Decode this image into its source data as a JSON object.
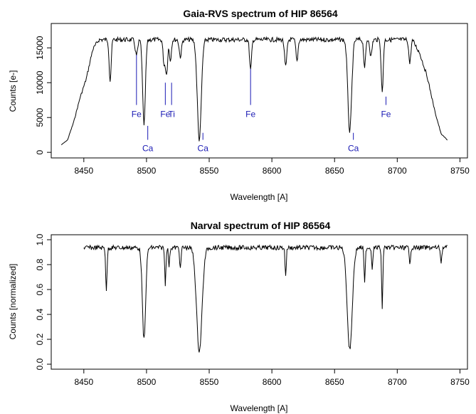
{
  "chart_data": [
    {
      "type": "line",
      "title": "Gaia-RVS spectrum of HIP 86564",
      "xlabel": "Wavelength [A]",
      "ylabel": "Counts [e-]",
      "xlim": [
        8424,
        8756
      ],
      "ylim": [
        -800,
        18500
      ],
      "xticks": [
        8450,
        8500,
        8550,
        8600,
        8650,
        8700,
        8750
      ],
      "yticks": [
        0,
        5000,
        10000,
        15000
      ],
      "grid": false,
      "line_color": "#000000",
      "x_start": 8432,
      "x_end": 8740,
      "base_level": 16900,
      "edges": [
        {
          "x": 8432,
          "y": 1100
        },
        {
          "x": 8437,
          "y": 1800
        },
        {
          "x": 8442,
          "y": 4500
        },
        {
          "x": 8447,
          "y": 8000
        },
        {
          "x": 8452,
          "y": 10800
        },
        {
          "x": 8457,
          "y": 15000
        },
        {
          "x": 8462,
          "y": 16500
        },
        {
          "x": 8712,
          "y": 16500
        },
        {
          "x": 8718,
          "y": 14500
        },
        {
          "x": 8724,
          "y": 11000
        },
        {
          "x": 8730,
          "y": 6000
        },
        {
          "x": 8735,
          "y": 2700
        },
        {
          "x": 8740,
          "y": 1800
        }
      ],
      "absorption_lines": [
        {
          "x": 8471,
          "depth": 6000,
          "width": 0.8
        },
        {
          "x": 8492,
          "depth": 2300,
          "width": 1.0
        },
        {
          "x": 8498.0,
          "depth": 12500,
          "width": 1.1
        },
        {
          "x": 8514,
          "depth": 3500,
          "width": 0.8
        },
        {
          "x": 8516,
          "depth": 5000,
          "width": 0.8
        },
        {
          "x": 8519,
          "depth": 3000,
          "width": 0.8
        },
        {
          "x": 8527,
          "depth": 2500,
          "width": 0.9
        },
        {
          "x": 8542.1,
          "depth": 14700,
          "width": 1.6
        },
        {
          "x": 8583,
          "depth": 4500,
          "width": 0.8
        },
        {
          "x": 8611,
          "depth": 4000,
          "width": 0.9
        },
        {
          "x": 8620,
          "depth": 3200,
          "width": 0.8
        },
        {
          "x": 8662.1,
          "depth": 13600,
          "width": 1.5
        },
        {
          "x": 8674,
          "depth": 4000,
          "width": 0.8
        },
        {
          "x": 8679,
          "depth": 2500,
          "width": 0.8
        },
        {
          "x": 8688,
          "depth": 7800,
          "width": 0.8
        },
        {
          "x": 8710,
          "depth": 3500,
          "width": 0.8
        }
      ],
      "labels": [
        {
          "text": "Fe",
          "x": 8492,
          "line_top": 14000,
          "line_bottom": 6800,
          "text_y": 5600,
          "position": "above"
        },
        {
          "text": "Fe",
          "x": 8515,
          "line_top": 10000,
          "line_bottom": 6800,
          "text_y": 5600,
          "position": "above"
        },
        {
          "text": "Ti",
          "x": 8520,
          "line_top": 10000,
          "line_bottom": 6800,
          "text_y": 5600,
          "position": "above"
        },
        {
          "text": "Fe",
          "x": 8583,
          "line_top": 12000,
          "line_bottom": 6800,
          "text_y": 5600,
          "position": "above"
        },
        {
          "text": "Fe",
          "x": 8691,
          "line_top": 8000,
          "line_bottom": 6800,
          "text_y": 5600,
          "position": "above"
        },
        {
          "text": "Ca",
          "x": 8501,
          "line_top": 3800,
          "line_bottom": 1800,
          "text_y": 700,
          "position": "below"
        },
        {
          "text": "Ca",
          "x": 8545,
          "line_top": 2800,
          "line_bottom": 1800,
          "text_y": 700,
          "position": "below"
        },
        {
          "text": "Ca",
          "x": 8665,
          "line_top": 2800,
          "line_bottom": 1800,
          "text_y": 700,
          "position": "below"
        }
      ],
      "label_color": "#1a1ab4"
    },
    {
      "type": "line",
      "title": "Narval spectrum of HIP 86564",
      "xlabel": "Wavelength [A]",
      "ylabel": "Counts [normalized]",
      "xlim": [
        8424,
        8756
      ],
      "ylim": [
        -0.04,
        1.04
      ],
      "xticks": [
        8450,
        8500,
        8550,
        8600,
        8650,
        8700,
        8750
      ],
      "yticks": [
        0.0,
        0.2,
        0.4,
        0.6,
        0.8,
        1.0
      ],
      "ytick_labels": [
        "0.0",
        "0.2",
        "0.4",
        "0.6",
        "0.8",
        "1.0"
      ],
      "grid": false,
      "line_color": "#000000",
      "x_start": 8450,
      "x_end": 8740,
      "base_level": 0.955,
      "absorption_lines": [
        {
          "x": 8468,
          "depth": 0.34,
          "width": 0.55
        },
        {
          "x": 8498.0,
          "depth": 0.74,
          "width": 1.3
        },
        {
          "x": 8515,
          "depth": 0.29,
          "width": 0.5
        },
        {
          "x": 8518,
          "depth": 0.15,
          "width": 0.5
        },
        {
          "x": 8527,
          "depth": 0.18,
          "width": 0.5
        },
        {
          "x": 8542.1,
          "depth": 0.83,
          "width": 2.2
        },
        {
          "x": 8611,
          "depth": 0.22,
          "width": 0.5
        },
        {
          "x": 8662.1,
          "depth": 0.82,
          "width": 2.0
        },
        {
          "x": 8674,
          "depth": 0.29,
          "width": 0.5
        },
        {
          "x": 8680,
          "depth": 0.16,
          "width": 0.5
        },
        {
          "x": 8688,
          "depth": 0.48,
          "width": 0.5
        },
        {
          "x": 8710,
          "depth": 0.14,
          "width": 0.5
        },
        {
          "x": 8735,
          "depth": 0.12,
          "width": 0.5
        }
      ]
    }
  ]
}
